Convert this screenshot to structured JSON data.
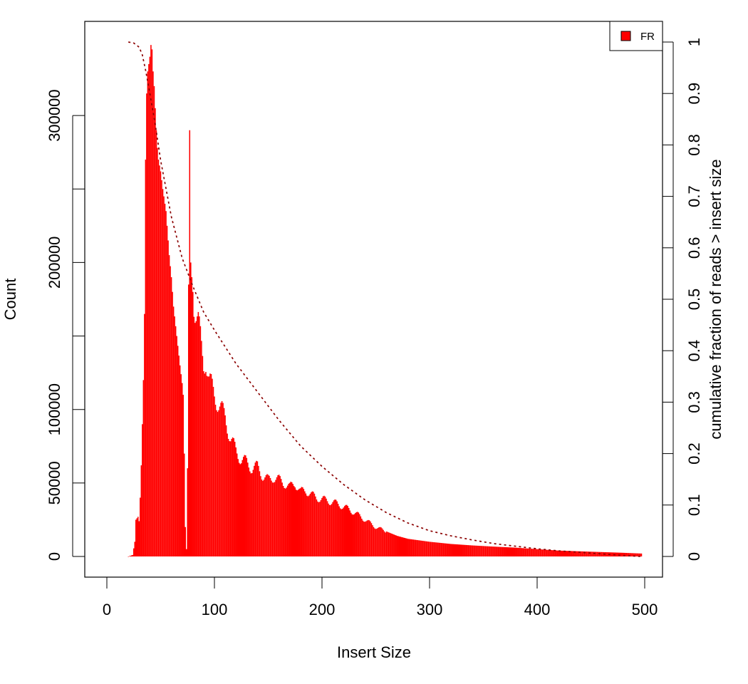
{
  "chart_data": {
    "type": "bar",
    "xlabel": "Insert Size",
    "ylabel": "Count",
    "y2label": "cumulative fraction of reads > insert size",
    "xlim": [
      0,
      500
    ],
    "ylim": [
      0,
      350000
    ],
    "y2lim": [
      0,
      1
    ],
    "xticks": [
      0,
      100,
      200,
      300,
      400,
      500
    ],
    "yticks": [
      0,
      50000,
      100000,
      150000,
      200000,
      250000,
      300000
    ],
    "ytick_labels": [
      "0",
      "50000",
      "100000",
      "",
      "200000",
      "",
      "300000"
    ],
    "y2ticks": [
      0,
      0.1,
      0.2,
      0.3,
      0.4,
      0.5,
      0.6,
      0.7,
      0.8,
      0.9,
      1
    ],
    "grid": false,
    "legend_position": "top-right",
    "series": [
      {
        "name": "FR",
        "color": "#ff0000",
        "x_range": [
          20,
          497
        ],
        "keypoints": [
          [
            20,
            0
          ],
          [
            24,
            1000
          ],
          [
            26,
            10000
          ],
          [
            27,
            25000
          ],
          [
            29,
            27000
          ],
          [
            30,
            24000
          ],
          [
            31,
            40000
          ],
          [
            32,
            62000
          ],
          [
            33,
            90000
          ],
          [
            34,
            120000
          ],
          [
            35,
            165000
          ],
          [
            36,
            270000
          ],
          [
            37,
            315000
          ],
          [
            38,
            330000
          ],
          [
            39,
            335000
          ],
          [
            40,
            340000
          ],
          [
            41,
            348000
          ],
          [
            42,
            345000
          ],
          [
            43,
            330000
          ],
          [
            44,
            320000
          ],
          [
            45,
            305000
          ],
          [
            46,
            290000
          ],
          [
            47,
            278000
          ],
          [
            48,
            270000
          ],
          [
            50,
            262000
          ],
          [
            52,
            250000
          ],
          [
            55,
            235000
          ],
          [
            58,
            205000
          ],
          [
            60,
            190000
          ],
          [
            62,
            170000
          ],
          [
            65,
            150000
          ],
          [
            68,
            130000
          ],
          [
            70,
            118000
          ],
          [
            71,
            110000
          ],
          [
            72,
            70000
          ],
          [
            73,
            20000
          ],
          [
            74,
            5000
          ],
          [
            75,
            60000
          ],
          [
            76,
            185000
          ],
          [
            77,
            290000
          ],
          [
            78,
            200000
          ],
          [
            80,
            180000
          ],
          [
            82,
            170000
          ],
          [
            85,
            160000
          ],
          [
            88,
            140000
          ],
          [
            90,
            130000
          ],
          [
            92,
            135000
          ],
          [
            95,
            120000
          ],
          [
            100,
            110000
          ],
          [
            105,
            102000
          ],
          [
            110,
            95000
          ],
          [
            115,
            80000
          ],
          [
            120,
            72000
          ],
          [
            125,
            66000
          ],
          [
            130,
            64000
          ],
          [
            135,
            60000
          ],
          [
            140,
            61000
          ],
          [
            145,
            55000
          ],
          [
            150,
            52000
          ],
          [
            155,
            54000
          ],
          [
            160,
            52000
          ],
          [
            165,
            50000
          ],
          [
            170,
            47000
          ],
          [
            175,
            50000
          ],
          [
            180,
            44000
          ],
          [
            185,
            45000
          ],
          [
            190,
            42000
          ],
          [
            195,
            40000
          ],
          [
            200,
            39000
          ],
          [
            205,
            38000
          ],
          [
            210,
            37000
          ],
          [
            220,
            34000
          ],
          [
            230,
            30000
          ],
          [
            240,
            25000
          ],
          [
            250,
            20000
          ],
          [
            260,
            17000
          ],
          [
            270,
            14000
          ],
          [
            280,
            12000
          ],
          [
            290,
            11000
          ],
          [
            300,
            10000
          ],
          [
            320,
            8500
          ],
          [
            340,
            7500
          ],
          [
            360,
            6700
          ],
          [
            380,
            6000
          ],
          [
            400,
            5000
          ],
          [
            420,
            4000
          ],
          [
            440,
            3500
          ],
          [
            460,
            3000
          ],
          [
            480,
            2500
          ],
          [
            497,
            2000
          ]
        ],
        "ripple_amplitude": 0.07
      },
      {
        "name": "",
        "style": "dotted",
        "color": "#8b0000",
        "axis": "right",
        "x": [
          20,
          25,
          30,
          33,
          36,
          40,
          45,
          50,
          60,
          70,
          80,
          90,
          100,
          120,
          140,
          160,
          180,
          200,
          220,
          240,
          260,
          280,
          300,
          320,
          340,
          360,
          380,
          400,
          420,
          440,
          460,
          480,
          497
        ],
        "y": [
          1.0,
          0.998,
          0.99,
          0.975,
          0.945,
          0.9,
          0.84,
          0.77,
          0.66,
          0.58,
          0.525,
          0.475,
          0.44,
          0.375,
          0.32,
          0.265,
          0.215,
          0.175,
          0.14,
          0.11,
          0.085,
          0.065,
          0.05,
          0.04,
          0.032,
          0.025,
          0.02,
          0.015,
          0.011,
          0.008,
          0.005,
          0.002,
          0.0
        ]
      }
    ]
  }
}
